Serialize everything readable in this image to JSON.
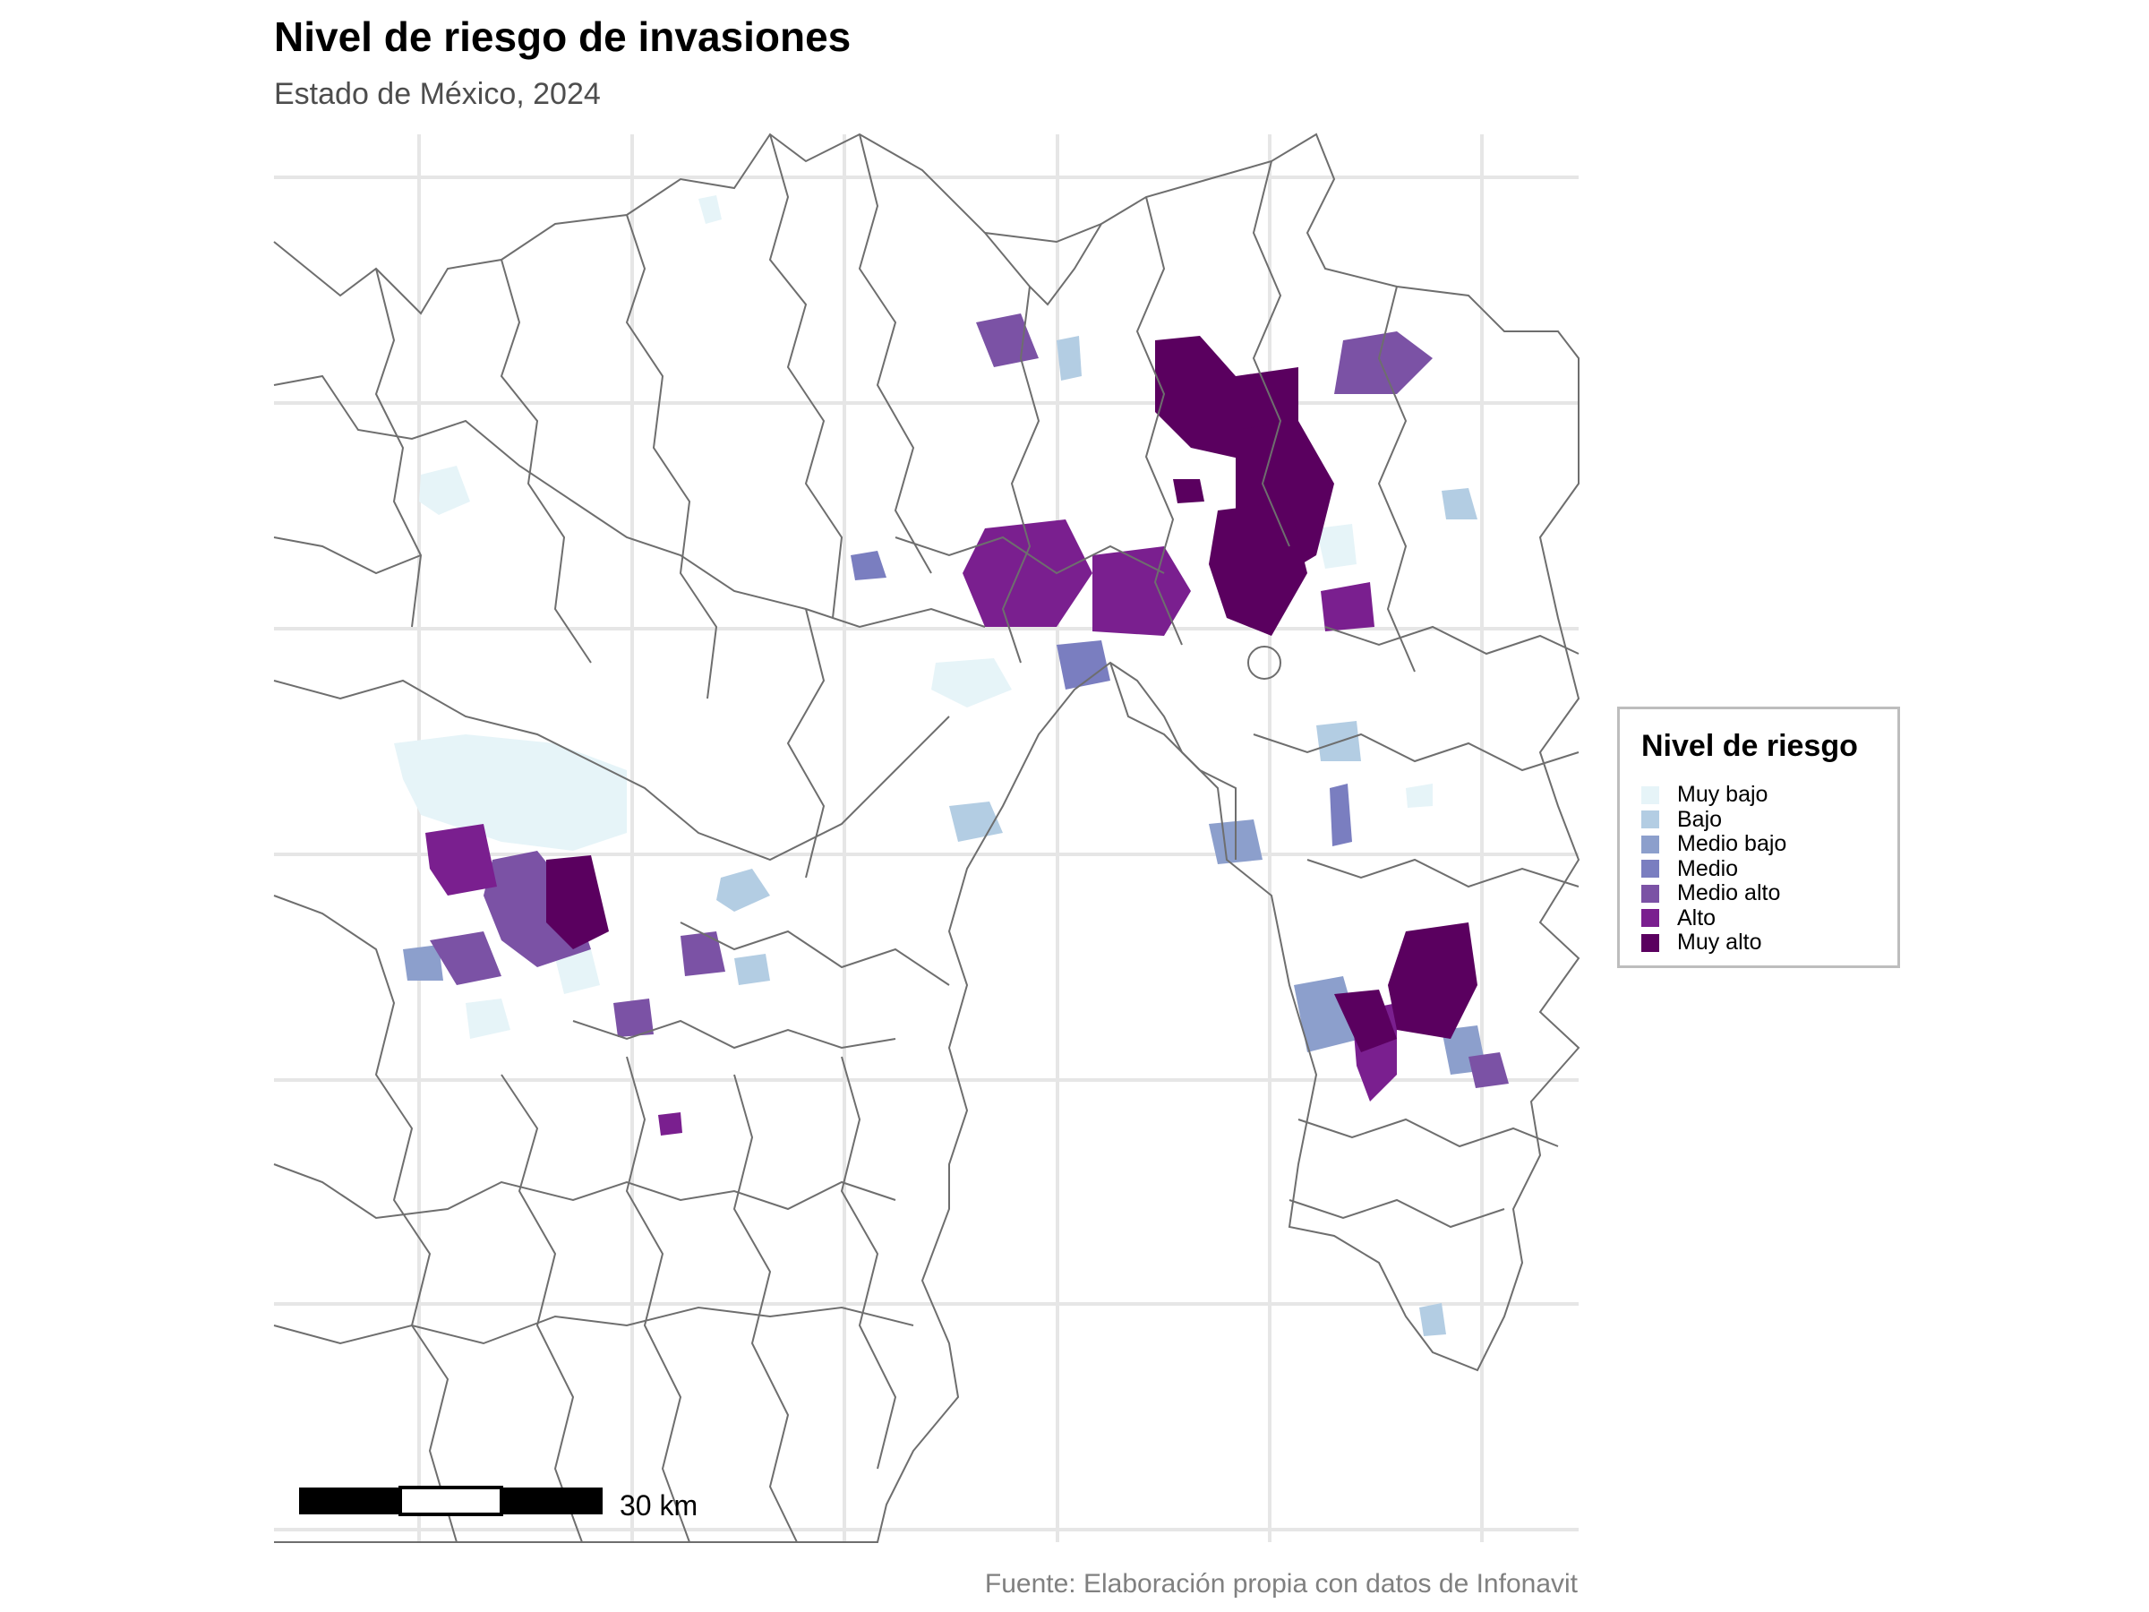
{
  "title": "Nivel de riesgo de invasiones",
  "subtitle": "Estado de México, 2024",
  "caption": "Fuente: Elaboración propia con datos de Infonavit",
  "legend": {
    "title": "Nivel de riesgo",
    "items": [
      {
        "label": "Muy bajo",
        "color": "#e6f4f8"
      },
      {
        "label": "Bajo",
        "color": "#b3cde3"
      },
      {
        "label": "Medio bajo",
        "color": "#8c9fcc"
      },
      {
        "label": "Medio",
        "color": "#7a7ec0"
      },
      {
        "label": "Medio alto",
        "color": "#7b52a5"
      },
      {
        "label": "Alto",
        "color": "#7a1f8f"
      },
      {
        "label": "Muy alto",
        "color": "#5a005f"
      }
    ]
  },
  "scale_bar": {
    "label": "30 km"
  },
  "colors": {
    "grid": "#e6e6e6",
    "border": "#6e6e6e",
    "background": "#ffffff"
  }
}
